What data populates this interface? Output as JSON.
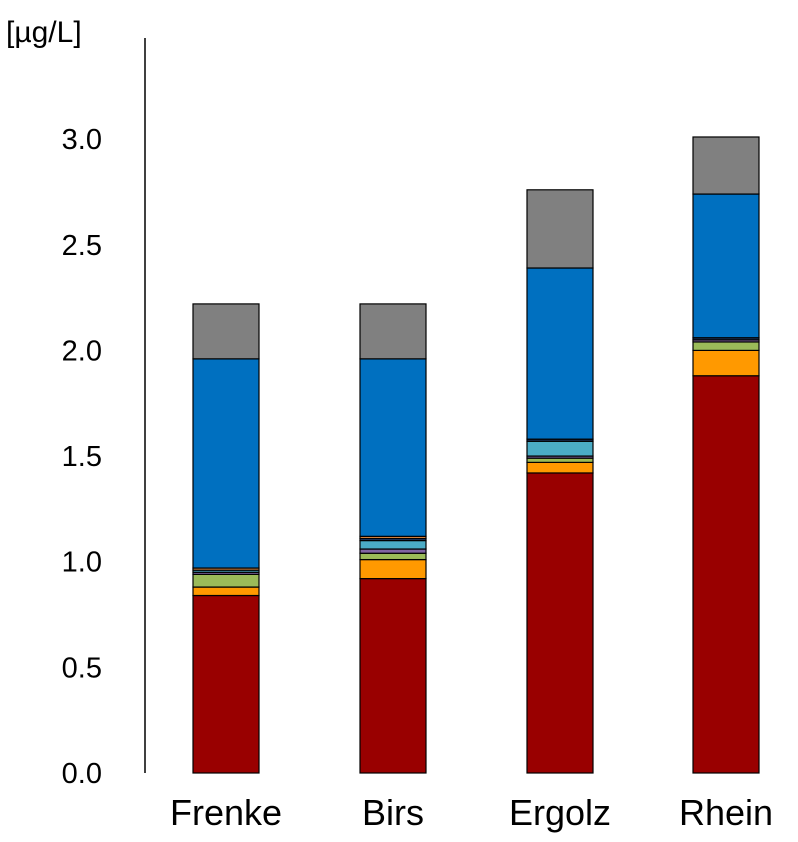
{
  "chart_data": {
    "type": "bar",
    "stacked": true,
    "title": "",
    "xlabel": "",
    "ylabel": "[µg/L]",
    "ylim": [
      0,
      3.0
    ],
    "yticks": [
      "0.0",
      "0.5",
      "1.0",
      "1.5",
      "2.0",
      "2.5",
      "3.0"
    ],
    "grid": false,
    "legend": "none",
    "categories": [
      "Frenke",
      "Birs",
      "Ergolz",
      "Rhein"
    ],
    "series": [
      {
        "color": "#990000",
        "values": [
          0.84,
          0.92,
          1.42,
          1.88
        ]
      },
      {
        "color": "#ff9900",
        "values": [
          0.04,
          0.09,
          0.05,
          0.12
        ]
      },
      {
        "color": "#9bbb59",
        "values": [
          0.06,
          0.03,
          0.02,
          0.04
        ]
      },
      {
        "color": "#8064a2",
        "values": [
          0.01,
          0.02,
          0.01,
          0.01
        ]
      },
      {
        "color": "#4bacc6",
        "values": [
          0.01,
          0.04,
          0.07,
          0.0
        ]
      },
      {
        "color": "#1f3864",
        "values": [
          0.0,
          0.01,
          0.01,
          0.01
        ]
      },
      {
        "color": "#f79646",
        "values": [
          0.01,
          0.01,
          0.0,
          0.0
        ]
      },
      {
        "color": "#0070c0",
        "values": [
          0.99,
          0.84,
          0.81,
          0.68
        ]
      },
      {
        "color": "#808080",
        "values": [
          0.26,
          0.26,
          0.37,
          0.27
        ]
      }
    ]
  }
}
